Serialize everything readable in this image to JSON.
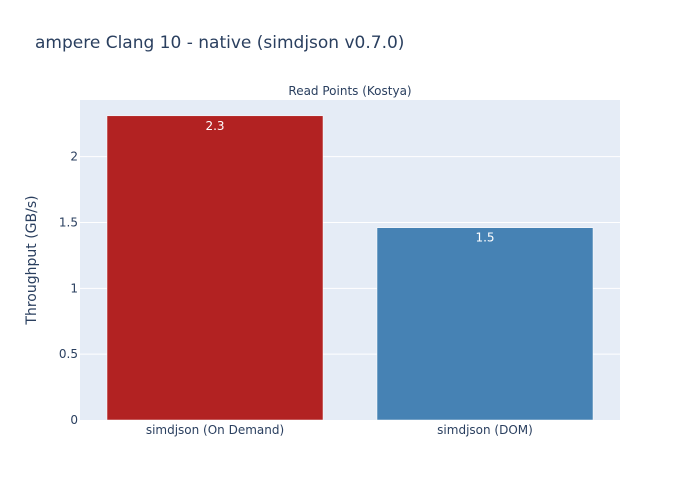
{
  "chart_data": {
    "type": "bar",
    "title": "ampere Clang 10 - native (simdjson v0.7.0)",
    "subtitle": "Read Points (Kostya)",
    "xlabel": "",
    "ylabel": "Throughput (GB/s)",
    "categories": [
      "simdjson (On Demand)",
      "simdjson (DOM)"
    ],
    "values": [
      2.31,
      1.46
    ],
    "value_labels": [
      "2.3",
      "1.5"
    ],
    "bar_colors": [
      "#b22222",
      "#4682b4"
    ],
    "ylim": [
      0,
      2.43
    ],
    "yticks": [
      0,
      0.5,
      1,
      1.5,
      2
    ],
    "ytick_labels": [
      "0",
      "0.5",
      "1",
      "1.5",
      "2"
    ],
    "grid": true,
    "legend": "none",
    "plot_background": "#e5ecf6"
  }
}
